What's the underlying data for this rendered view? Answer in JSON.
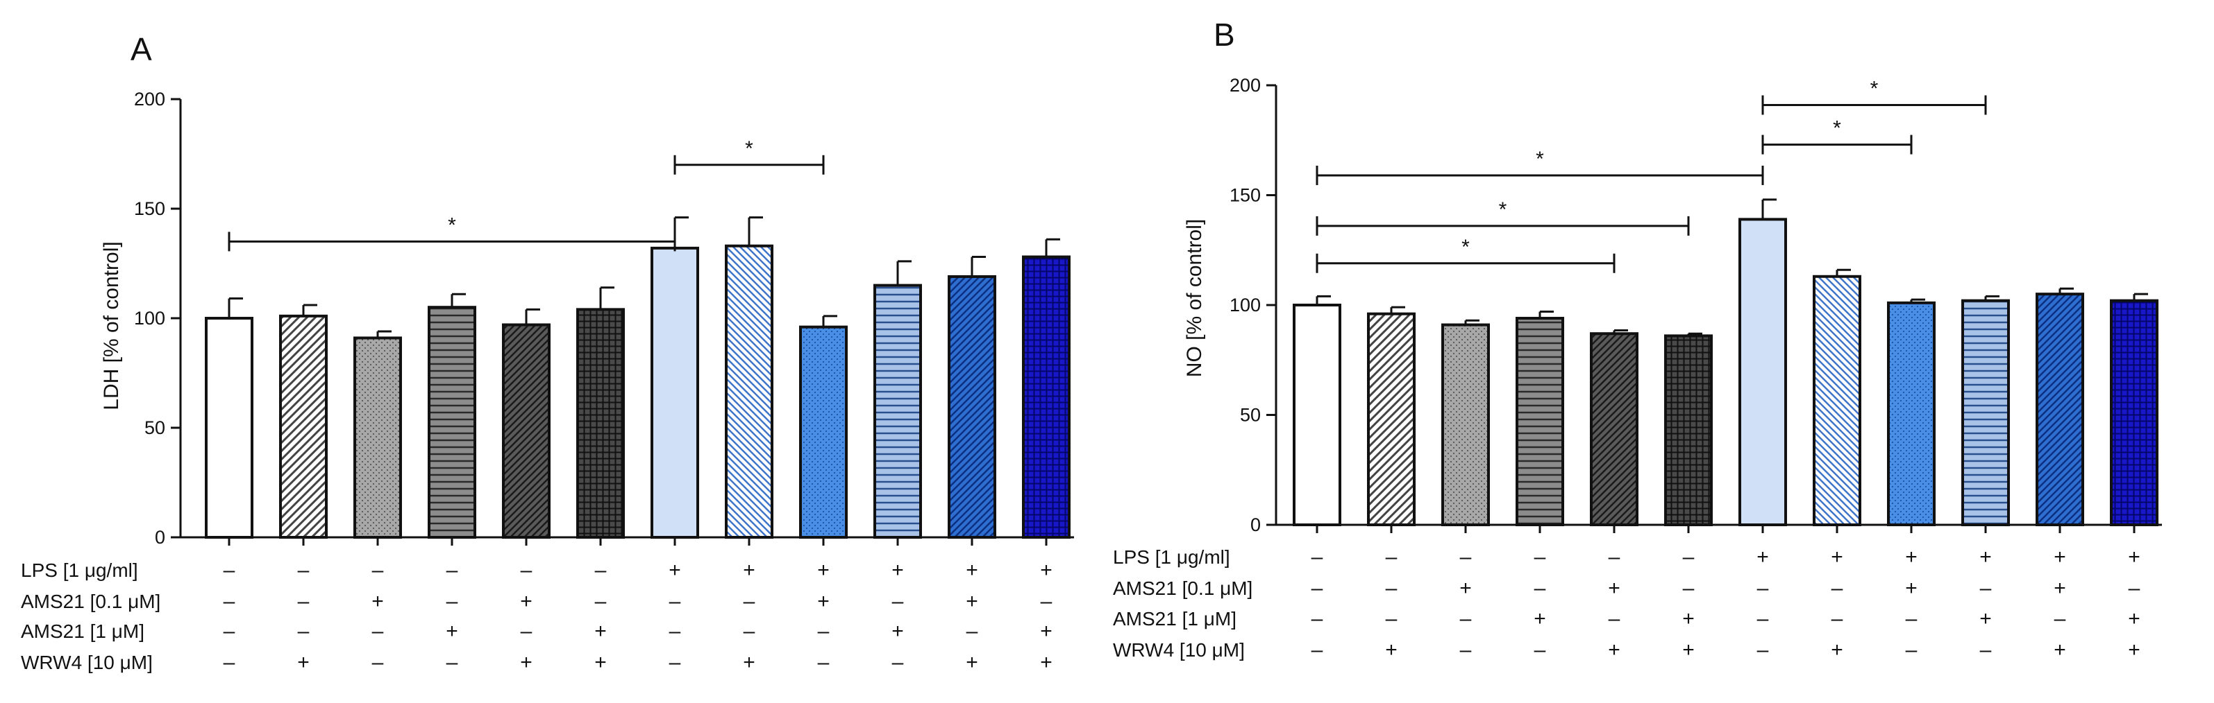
{
  "figure": {
    "panels": [
      "A",
      "B"
    ]
  },
  "colors": {
    "white": "#ffffff",
    "light_gray": "#a8a8a8",
    "mid_gray": "#8c8c8c",
    "dark_gray": "#5a5a5a",
    "charcoal": "#3a3a3a",
    "light_blue": "#cfe0f7",
    "sky_blue": "#7fb0ea",
    "bright_blue": "#4a8fe6",
    "steel_blue": "#7f9fd0",
    "cobalt": "#2060c8",
    "navy": "#1010b8"
  },
  "chart_data": [
    {
      "panel": "A",
      "type": "bar",
      "ylabel": "LDH [% of control]",
      "ylim": [
        0,
        200
      ],
      "yticks": [
        "0",
        "50",
        "100",
        "150",
        "200"
      ],
      "series": [
        {
          "name": "LDH",
          "values": [
            100,
            101,
            91,
            105,
            97,
            104,
            132,
            133,
            96,
            115,
            119,
            128
          ],
          "errors": [
            9,
            5,
            3,
            6,
            7,
            10,
            14,
            13,
            5,
            11,
            9,
            8
          ]
        }
      ],
      "patterns": [
        "white",
        "diag-right-gray",
        "dots-gray",
        "horiz-gray",
        "diag-dark",
        "grid-dark",
        "light-blue",
        "diag-blue",
        "dots-blue",
        "horiz-blue",
        "diag-cobalt",
        "grid-navy"
      ],
      "significance": [
        {
          "from": 0,
          "to": 6,
          "level": 135,
          "label": "*"
        },
        {
          "from": 6,
          "to": 8,
          "level": 170,
          "label": "*"
        }
      ],
      "conditions": [
        {
          "label": "LPS [1 μg/ml]",
          "values": [
            "–",
            "–",
            "–",
            "–",
            "–",
            "–",
            "+",
            "+",
            "+",
            "+",
            "+",
            "+"
          ]
        },
        {
          "label": "AMS21 [0.1 μM]",
          "values": [
            "–",
            "–",
            "+",
            "–",
            "+",
            "–",
            "–",
            "–",
            "+",
            "–",
            "+",
            "–"
          ]
        },
        {
          "label": "AMS21 [1 μM]",
          "values": [
            "–",
            "–",
            "–",
            "+",
            "–",
            "+",
            "–",
            "–",
            "–",
            "+",
            "–",
            "+"
          ]
        },
        {
          "label": "WRW4 [10 μM]",
          "values": [
            "–",
            "+",
            "–",
            "–",
            "+",
            "+",
            "–",
            "+",
            "–",
            "–",
            "+",
            "+"
          ]
        }
      ]
    },
    {
      "panel": "B",
      "type": "bar",
      "ylabel": "NO [% of control]",
      "ylim": [
        0,
        200
      ],
      "yticks": [
        "0",
        "50",
        "100",
        "150",
        "200"
      ],
      "series": [
        {
          "name": "NO",
          "values": [
            100,
            96,
            91,
            94,
            87,
            86,
            139,
            113,
            101,
            102,
            105,
            102
          ],
          "errors": [
            4,
            3,
            2,
            3,
            1.5,
            1,
            9,
            3,
            1.5,
            2,
            2.5,
            3
          ]
        }
      ],
      "patterns": [
        "white",
        "diag-right-gray",
        "dots-gray",
        "horiz-gray",
        "diag-dark",
        "grid-dark",
        "light-blue",
        "diag-blue",
        "dots-blue",
        "horiz-blue",
        "diag-cobalt",
        "grid-navy"
      ],
      "significance": [
        {
          "from": 0,
          "to": 4,
          "level": 119,
          "label": "*"
        },
        {
          "from": 0,
          "to": 5,
          "level": 136,
          "label": "*"
        },
        {
          "from": 0,
          "to": 6,
          "level": 159,
          "label": "*"
        },
        {
          "from": 6,
          "to": 8,
          "level": 173,
          "label": "*"
        },
        {
          "from": 6,
          "to": 9,
          "level": 191,
          "label": "*"
        }
      ],
      "conditions": [
        {
          "label": "LPS [1 μg/ml]",
          "values": [
            "–",
            "–",
            "–",
            "–",
            "–",
            "–",
            "+",
            "+",
            "+",
            "+",
            "+",
            "+"
          ]
        },
        {
          "label": "AMS21 [0.1 μM]",
          "values": [
            "–",
            "–",
            "+",
            "–",
            "+",
            "–",
            "–",
            "–",
            "+",
            "–",
            "+",
            "–"
          ]
        },
        {
          "label": "AMS21 [1 μM]",
          "values": [
            "–",
            "–",
            "–",
            "+",
            "–",
            "+",
            "–",
            "–",
            "–",
            "+",
            "–",
            "+"
          ]
        },
        {
          "label": "WRW4 [10 μM]",
          "values": [
            "–",
            "+",
            "–",
            "–",
            "+",
            "+",
            "–",
            "+",
            "–",
            "–",
            "+",
            "+"
          ]
        }
      ]
    }
  ]
}
